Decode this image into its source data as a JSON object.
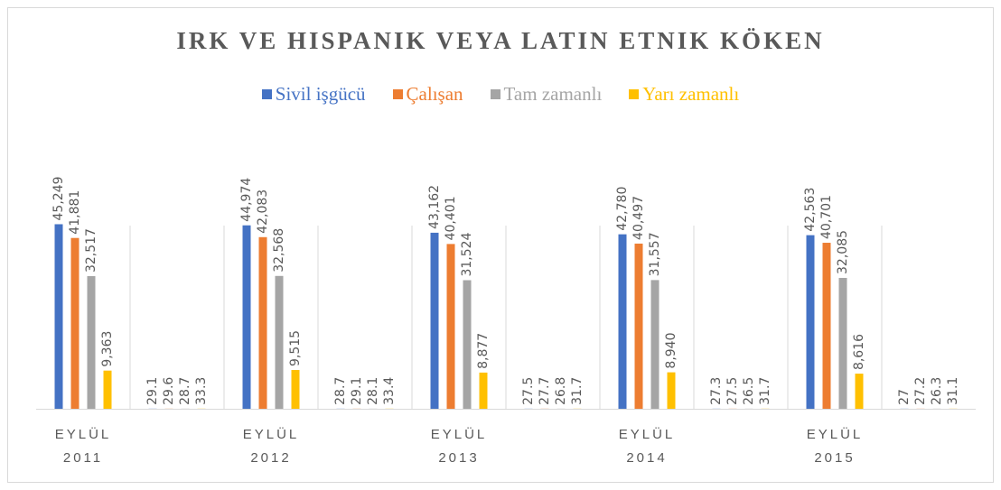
{
  "chart_data": {
    "type": "bar",
    "title": "IRK VE HISPANIK VEYA LATIN ETNIK KÖKEN",
    "categories": [
      "EYLÜL 2011",
      null,
      "EYLÜL 2012",
      null,
      "EYLÜL 2013",
      null,
      "EYLÜL 2014",
      null,
      "EYLÜL 2015",
      null
    ],
    "series": [
      {
        "name": "Sivil işgücü",
        "color": "#4472c4",
        "values": [
          45249,
          29.1,
          44974,
          28.7,
          43162,
          27.5,
          42780,
          27.3,
          42563,
          27
        ],
        "value_labels": [
          "45,249",
          "29.1",
          "44,974",
          "28.7",
          "43,162",
          "27.5",
          "42,780",
          "27.3",
          "42,563",
          "27"
        ]
      },
      {
        "name": "Çalışan",
        "color": "#ed7d31",
        "values": [
          41881,
          29.6,
          42083,
          29.1,
          40401,
          27.7,
          40497,
          27.5,
          40701,
          27.2
        ],
        "value_labels": [
          "41,881",
          "29.6",
          "42,083",
          "29.1",
          "40,401",
          "27.7",
          "40,497",
          "27.5",
          "40,701",
          "27.2"
        ]
      },
      {
        "name": "Tam zamanlı",
        "color": "#a5a5a5",
        "values": [
          32517,
          28.7,
          32568,
          28.1,
          31524,
          26.8,
          31557,
          26.5,
          32085,
          26.3
        ],
        "value_labels": [
          "32,517",
          "28.7",
          "32,568",
          "28.1",
          "31,524",
          "26.8",
          "31,557",
          "26.5",
          "32,085",
          "26.3"
        ]
      },
      {
        "name": "Yarı zamanlı",
        "color": "#ffc000",
        "values": [
          9363,
          33.3,
          9515,
          33.4,
          8877,
          31.7,
          8940,
          31.7,
          8616,
          31.1
        ],
        "value_labels": [
          "9,363",
          "33.3",
          "9,515",
          "33.4",
          "8,877",
          "31.7",
          "8,940",
          "31.7",
          "8,616",
          "31.1"
        ]
      }
    ],
    "ylim": [
      0,
      50000
    ],
    "legend": "top"
  }
}
